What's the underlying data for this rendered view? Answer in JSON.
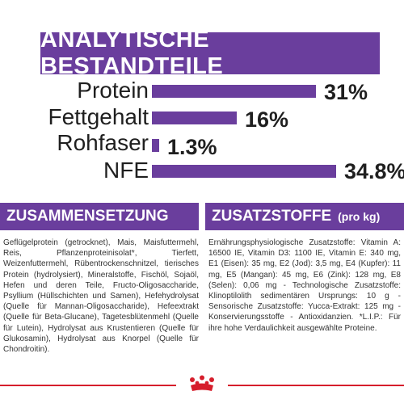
{
  "header": {
    "title": "ANALYTISCHE BESTANDTEILE"
  },
  "colors": {
    "accent": "#6a3e9d",
    "brand_red": "#d61e2c"
  },
  "analytics": [
    {
      "label": "Protein",
      "value": "31%",
      "fraction": 0.31
    },
    {
      "label": "Fettgehalt",
      "value": "16%",
      "fraction": 0.16
    },
    {
      "label": "Rohfaser",
      "value": "1.3%",
      "fraction": 0.013
    },
    {
      "label": "NFE",
      "value": "34.8%",
      "fraction": 0.348
    }
  ],
  "composition": {
    "title": "ZUSAMMENSETZUNG",
    "text": "Geflügelprotein (getrocknet), Mais, Maisfuttermehl, Reis, Pflanzenproteinisolat*, Tierfett, Weizenfuttermehl, Rübentrockenschnitzel, tierisches Protein (hydrolysiert), Mineralstoffe, Fischöl, Sojaöl, Hefen und deren Teile, Fructo-Oligosaccharide, Psyllium (Hüllschichten und Samen), Hefehydrolysat (Quelle für Mannan-Oligosaccharide), Hefeextrakt (Quelle für Beta-Glucane), Tagetesblütenmehl (Quelle für Lutein), Hydrolysat aus Krustentieren (Quelle für Glukosamin), Hydrolysat aus Knorpel (Quelle für Chondroitin)."
  },
  "additives": {
    "title": "ZUSATZSTOFFE",
    "suffix": "(pro kg)",
    "text": "Ernährungsphysiologische Zusatzstoffe: Vitamin A: 16500 IE, Vitamin D3: 1100 IE, Vitamin E: 340 mg, E1 (Eisen): 35 mg, E2 (Jod): 3,5 mg, E4 (Kupfer): 11 mg, E5 (Mangan): 45 mg, E6 (Zink): 128 mg, E8 (Selen): 0,06 mg - Technologische Zusatzstoffe: Klinoptilolith sedimentären Ursprungs: 10 g - Sensorische Zusatzstoffe: Yucca-Extrakt: 125 mg - Konservierungsstoffe - Antioxidanzien. *L.I.P.: Für ihre hohe Verdaulichkeit ausgewählte Proteine."
  },
  "footer": {
    "logo_icon": "royal-canin-crown-icon"
  }
}
